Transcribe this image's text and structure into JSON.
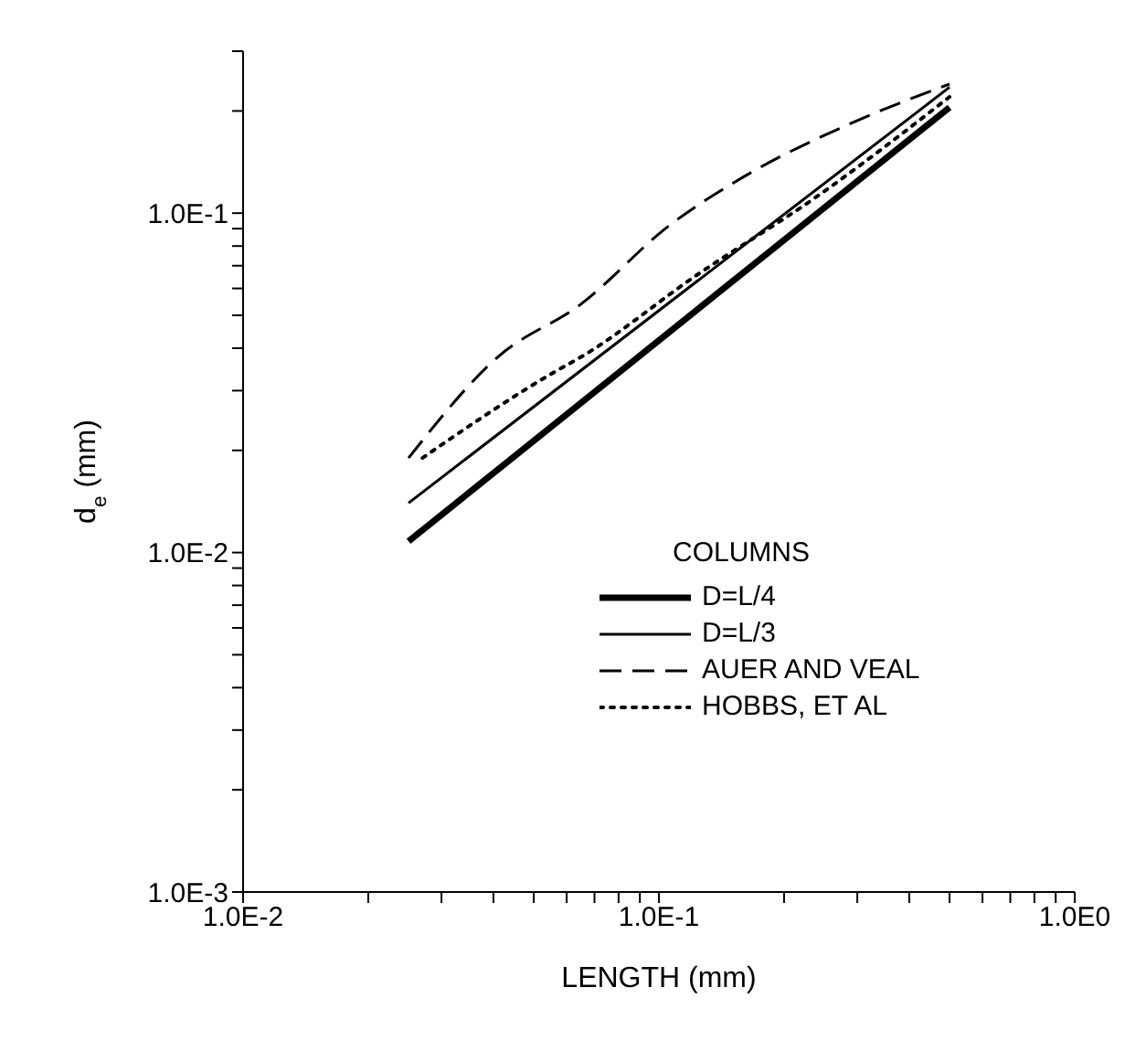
{
  "chart_data": {
    "type": "line",
    "xlabel": "LENGTH (mm)",
    "ylabel": "d$_{e}$ (mm)",
    "legend_title": "COLUMNS",
    "legend": "right",
    "log": "xy",
    "marker": "none",
    "xlim": [
      0.01,
      1
    ],
    "ylim": [
      0.001,
      0.3
    ],
    "xticks": [
      {
        "value": 0.01,
        "label": "1.0E-2"
      },
      {
        "value": 0.02,
        "label": null
      },
      {
        "value": 0.03,
        "label": null
      },
      {
        "value": 0.04,
        "label": null
      },
      {
        "value": 0.05,
        "label": null
      },
      {
        "value": 0.06,
        "label": null
      },
      {
        "value": 0.07,
        "label": null
      },
      {
        "value": 0.08,
        "label": null
      },
      {
        "value": 0.09,
        "label": null
      },
      {
        "value": 0.1,
        "label": "1.0E-1"
      },
      {
        "value": 0.2,
        "label": null
      },
      {
        "value": 0.3,
        "label": null
      },
      {
        "value": 0.4,
        "label": null
      },
      {
        "value": 0.5,
        "label": null
      },
      {
        "value": 0.6,
        "label": null
      },
      {
        "value": 0.7,
        "label": null
      },
      {
        "value": 0.8,
        "label": null
      },
      {
        "value": 0.9,
        "label": null
      },
      {
        "value": 1,
        "label": "1.0E0"
      }
    ],
    "yticks": [
      {
        "value": 0.001,
        "label": "1.0E-3"
      },
      {
        "value": 0.002,
        "label": null
      },
      {
        "value": 0.003,
        "label": null
      },
      {
        "value": 0.004,
        "label": null
      },
      {
        "value": 0.005,
        "label": null
      },
      {
        "value": 0.006,
        "label": null
      },
      {
        "value": 0.007,
        "label": null
      },
      {
        "value": 0.008,
        "label": null
      },
      {
        "value": 0.009,
        "label": null
      },
      {
        "value": 0.01,
        "label": "1.0E-2"
      },
      {
        "value": 0.02,
        "label": null
      },
      {
        "value": 0.03,
        "label": null
      },
      {
        "value": 0.04,
        "label": null
      },
      {
        "value": 0.05,
        "label": null
      },
      {
        "value": 0.06,
        "label": null
      },
      {
        "value": 0.07,
        "label": null
      },
      {
        "value": 0.08,
        "label": null
      },
      {
        "value": 0.09,
        "label": null
      },
      {
        "value": 0.1,
        "label": "1.0E-1"
      },
      {
        "value": 0.2,
        "label": null
      },
      {
        "value": 0.3,
        "label": null
      }
    ],
    "series": [
      {
        "name": "D=L/4",
        "color": "#000000",
        "line_style": "solid",
        "x": [
          0.025,
          0.5
        ],
        "values": [
          0.0108,
          0.205
        ]
      },
      {
        "name": "D=L/3",
        "color": "#000000",
        "line_style": "solid",
        "x": [
          0.025,
          0.5
        ],
        "values": [
          0.014,
          0.235
        ]
      },
      {
        "name": "AUER AND VEAL",
        "color": "#000000",
        "line_style": "dashed",
        "x": [
          0.025,
          0.041,
          0.065,
          0.106,
          0.16,
          0.29,
          0.5
        ],
        "values": [
          0.019,
          0.0377,
          0.054,
          0.092,
          0.128,
          0.184,
          0.24
        ]
      },
      {
        "name": "HOBBS, ET AL",
        "color": "#000000",
        "line_style": "dotted",
        "x": [
          0.027,
          0.056,
          0.065,
          0.124,
          0.235,
          0.5
        ],
        "values": [
          0.019,
          0.034,
          0.0377,
          0.066,
          0.11,
          0.22
        ]
      }
    ]
  }
}
